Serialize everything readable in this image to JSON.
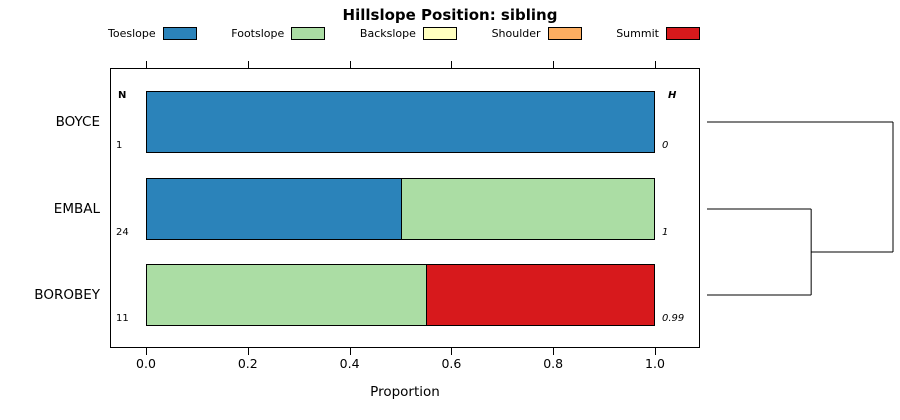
{
  "title": "Hillslope Position: sibling",
  "legend": [
    {
      "label": "Toeslope",
      "color": "#2b83ba"
    },
    {
      "label": "Footslope",
      "color": "#abdda4"
    },
    {
      "label": "Backslope",
      "color": "#ffffbf"
    },
    {
      "label": "Shoulder",
      "color": "#fdae61"
    },
    {
      "label": "Summit",
      "color": "#d7191c"
    }
  ],
  "chart_data": {
    "type": "bar",
    "orientation": "horizontal-stacked",
    "title": "Hillslope Position: sibling",
    "xlabel": "Proportion",
    "xlim": [
      0,
      1
    ],
    "x_ticks": [
      0.0,
      0.2,
      0.4,
      0.6,
      0.8,
      1.0
    ],
    "grid": false,
    "legend_position": "top",
    "n_header": "N",
    "h_header": "H",
    "categories": [
      "BOYCE",
      "EMBAL",
      "BOROBEY"
    ],
    "rows": [
      {
        "name": "BOYCE",
        "n": "1",
        "h": "0",
        "segments": [
          {
            "class": "Toeslope",
            "value": 1.0
          }
        ]
      },
      {
        "name": "EMBAL",
        "n": "24",
        "h": "1",
        "segments": [
          {
            "class": "Toeslope",
            "value": 0.5
          },
          {
            "class": "Footslope",
            "value": 0.5
          }
        ]
      },
      {
        "name": "BOROBEY",
        "n": "11",
        "h": "0.99",
        "segments": [
          {
            "class": "Footslope",
            "value": 0.55
          },
          {
            "class": "Summit",
            "value": 0.45
          }
        ]
      }
    ],
    "dendrogram": {
      "leaf_order": [
        "BOYCE",
        "EMBAL",
        "BOROBEY"
      ],
      "merges": [
        {
          "a": "EMBAL",
          "b": "BOROBEY",
          "height": 0.56
        },
        {
          "a": "BOYCE",
          "b": "EMBAL+BOROBEY",
          "height": 1.0
        }
      ]
    }
  }
}
